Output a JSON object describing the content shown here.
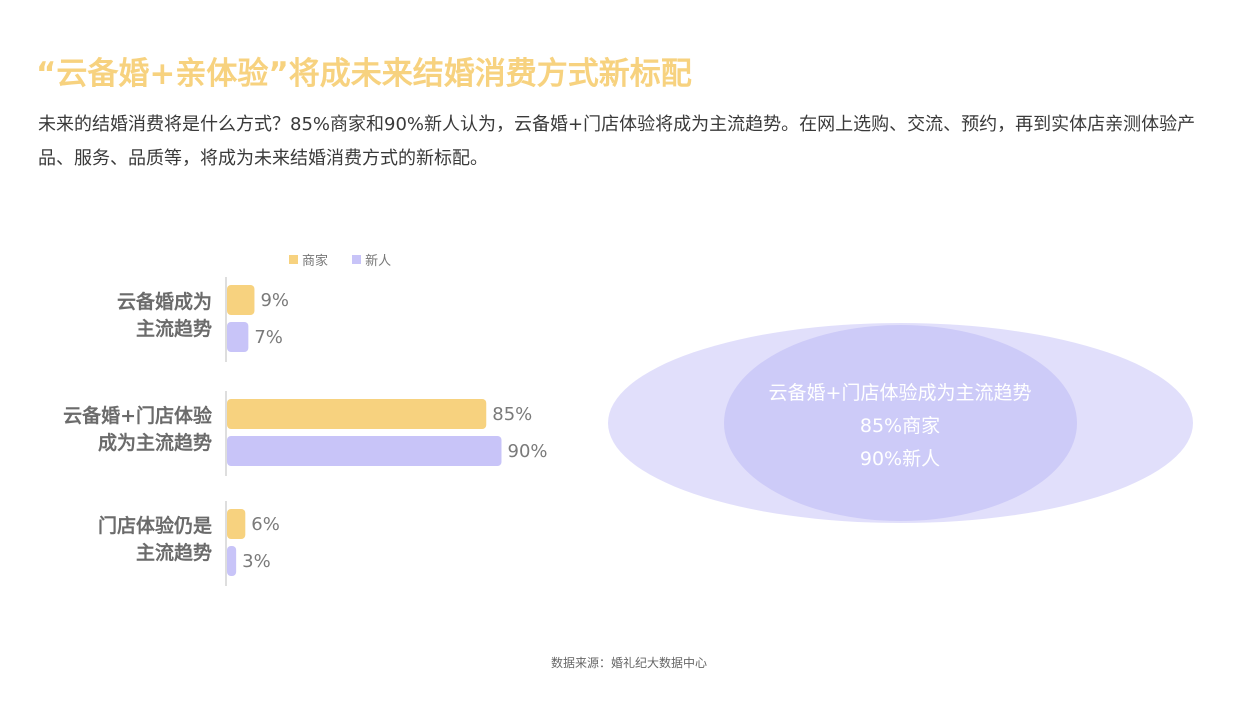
{
  "title": "“云备婚+亲体验”将成未来结婚消费方式新标配",
  "intro": "未来的结婚消费将是什么方式？85%商家和90%新人认为，云备婚+门店体验将成为主流趋势。在网上选购、交流、预约，再到实体店亲测体验产品、服务、品质等，将成为未来结婚消费方式的新标配。",
  "legend": {
    "merchant": "商家",
    "newcomer": "新人"
  },
  "venn": {
    "line1": "云备婚+门店体验成为主流趋势",
    "line2": "85%商家",
    "line3": "90%新人"
  },
  "source": "数据来源：婚礼纪大数据中心",
  "colors": {
    "merchant": "#f7d27f",
    "newcomer": "#c8c4f8",
    "title": "#f7d27f"
  },
  "chart_data": {
    "type": "bar",
    "orientation": "horizontal",
    "categories": [
      [
        "云备婚成为",
        "主流趋势"
      ],
      [
        "云备婚+门店体验",
        "成为主流趋势"
      ],
      [
        "门店体验仍是",
        "主流趋势"
      ]
    ],
    "series": [
      {
        "name": "商家",
        "values": [
          9,
          85,
          6
        ],
        "labels": [
          "9%",
          "85%",
          "6%"
        ]
      },
      {
        "name": "新人",
        "values": [
          7,
          90,
          3
        ],
        "labels": [
          "7%",
          "90%",
          "3%"
        ]
      }
    ],
    "unit": "%",
    "xlim": [
      0,
      100
    ],
    "grid": false,
    "legend_position": "top"
  }
}
